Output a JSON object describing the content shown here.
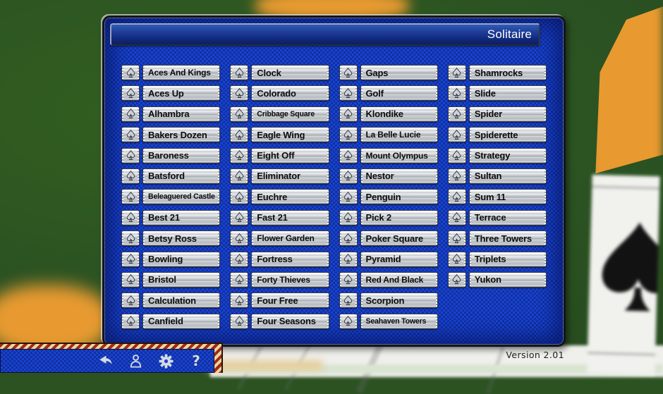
{
  "window": {
    "title": "Solitaire",
    "version_label": "Version 2.01"
  },
  "game_columns": [
    [
      "Aces And Kings",
      "Aces Up",
      "Alhambra",
      "Bakers Dozen",
      "Baroness",
      "Batsford",
      "Beleaguered Castle",
      "Best 21",
      "Betsy Ross",
      "Bowling",
      "Bristol",
      "Calculation",
      "Canfield"
    ],
    [
      "Clock",
      "Colorado",
      "Cribbage Square",
      "Eagle Wing",
      "Eight Off",
      "Eliminator",
      "Euchre",
      "Fast 21",
      "Flower Garden",
      "Fortress",
      "Forty Thieves",
      "Four Free",
      "Four Seasons"
    ],
    [
      "Gaps",
      "Golf",
      "Klondike",
      "La Belle Lucie",
      "Mount Olympus",
      "Nestor",
      "Penguin",
      "Pick 2",
      "Poker Square",
      "Pyramid",
      "Red And Black",
      "Scorpion",
      "Seahaven Towers"
    ],
    [
      "Shamrocks",
      "Slide",
      "Spider",
      "Spiderette",
      "Strategy",
      "Sultan",
      "Sum 11",
      "Terrace",
      "Three Towers",
      "Triplets",
      "Yukon"
    ]
  ],
  "game_row_icon": "spade-icon",
  "toolbar": {
    "icons": [
      "back-icon",
      "player-icon",
      "settings-icon",
      "help-icon"
    ]
  },
  "colors": {
    "dialog_blue": "#1843cd",
    "titlebar_navy": "#122a7e",
    "desktop_green": "#2c5222",
    "accent_orange": "#e89a30",
    "button_silver": "#c9cdd2",
    "ribbon_cream": "#e8d7a0",
    "ribbon_red": "#9e1f11",
    "button_text": "#0c0c0c"
  }
}
